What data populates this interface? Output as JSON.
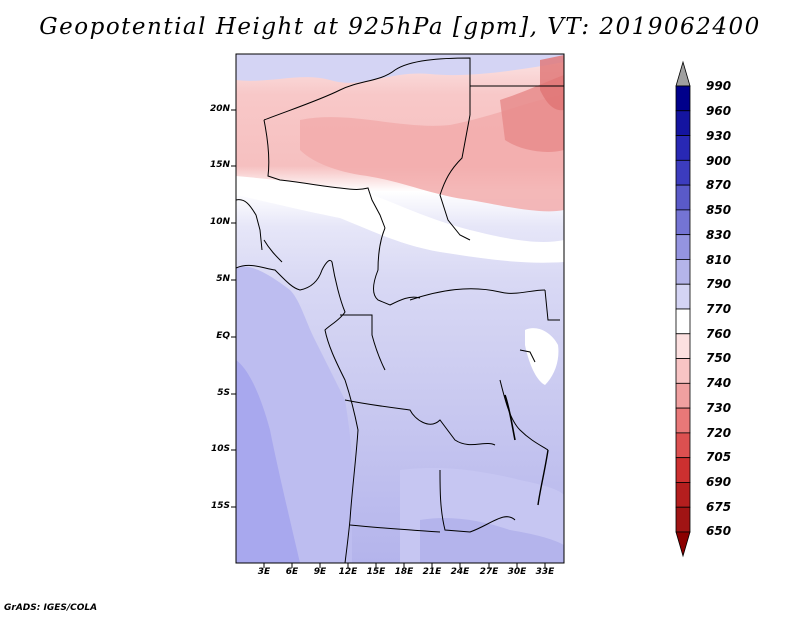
{
  "title": "Geopotential Height at 925hPa [gpm], VT: 2019062400",
  "credit": "GrADS: IGES/COLA",
  "map": {
    "lat_labels": [
      "20N",
      "15N",
      "10N",
      "5N",
      "EQ",
      "5S",
      "10S",
      "15S"
    ],
    "lon_labels": [
      "3E",
      "6E",
      "9E",
      "12E",
      "15E",
      "18E",
      "21E",
      "24E",
      "27E",
      "30E",
      "33E"
    ]
  },
  "colorbar": {
    "levels": [
      "990",
      "960",
      "930",
      "900",
      "870",
      "850",
      "830",
      "810",
      "790",
      "770",
      "760",
      "750",
      "740",
      "730",
      "720",
      "705",
      "690",
      "675",
      "650"
    ],
    "colors": [
      "#a0a0a0",
      "#00008b",
      "#1414a0",
      "#2828b4",
      "#3c3cbe",
      "#5a5ac8",
      "#7474d4",
      "#9494e0",
      "#b4b4ea",
      "#d4d4f4",
      "#ffffff",
      "#fce0e0",
      "#f8c4c4",
      "#f0a0a0",
      "#e87878",
      "#dc5050",
      "#cc3030",
      "#b41e1e",
      "#a01414",
      "#8b0000"
    ]
  }
}
